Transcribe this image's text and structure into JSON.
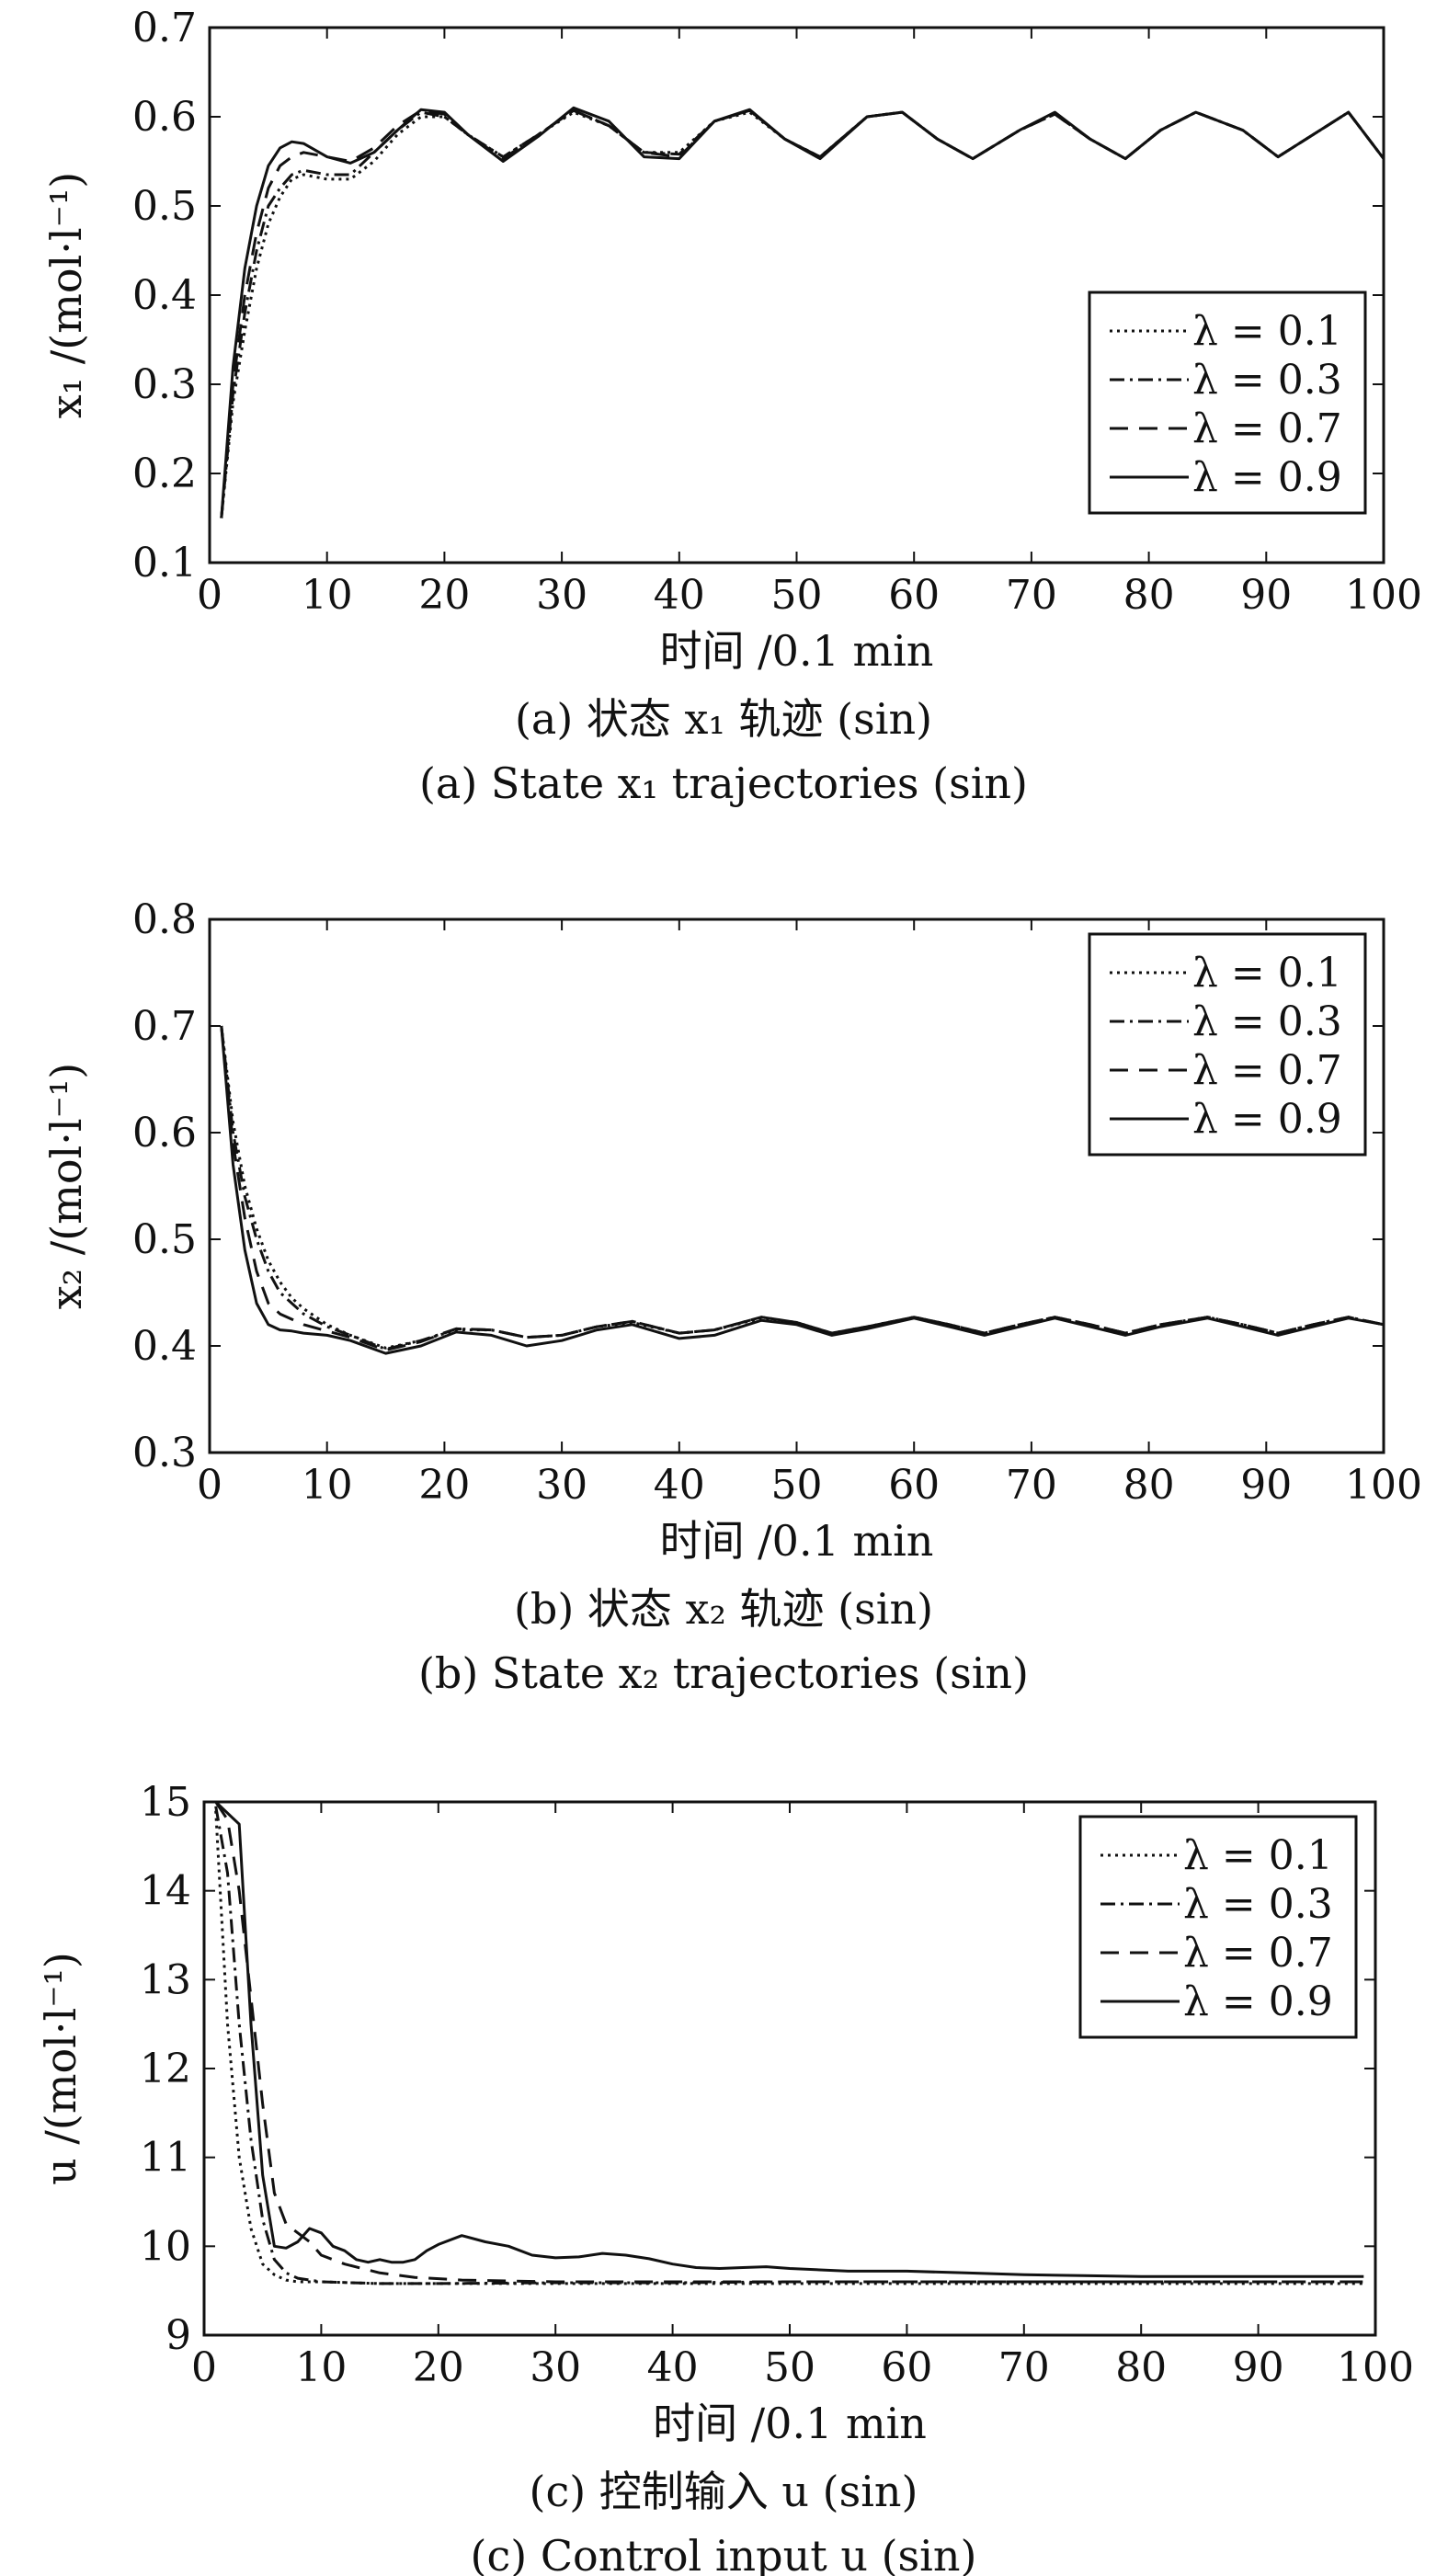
{
  "chart_data": [
    {
      "type": "line",
      "title": "(a) 状态 x₁ 轨迹 (sin)",
      "subtitle": "(a) State x₁ trajectories (sin)",
      "xlabel": "时间 /0.1 min",
      "ylabel": "x₁ /(mol·l⁻¹)",
      "xlim": [
        0,
        100
      ],
      "ylim": [
        0.1,
        0.7
      ],
      "xticks": [
        0,
        10,
        20,
        30,
        40,
        50,
        60,
        70,
        80,
        90,
        100
      ],
      "xtick_labels": [
        "0",
        "10",
        "20",
        "30",
        "40",
        "50",
        "60",
        "70",
        "80",
        "90",
        "100"
      ],
      "yticks": [
        0.1,
        0.2,
        0.3,
        0.4,
        0.5,
        0.6,
        0.7
      ],
      "ytick_labels": [
        "0.1",
        "0.2",
        "0.3",
        "0.4",
        "0.5",
        "0.6",
        "0.7"
      ],
      "grid": false,
      "legend_position": "right",
      "series": [
        {
          "name": "λ = 0.1",
          "style": "dotted",
          "x": [
            1,
            2,
            3,
            4,
            5,
            6,
            7,
            8,
            10,
            12,
            14,
            16,
            18,
            20,
            22,
            25,
            28,
            31,
            34,
            37,
            40,
            43,
            46,
            49,
            52,
            56,
            59,
            62,
            65,
            69,
            72,
            75,
            78,
            81,
            84,
            88,
            91,
            94,
            97,
            100
          ],
          "values": [
            0.15,
            0.28,
            0.36,
            0.43,
            0.48,
            0.51,
            0.53,
            0.535,
            0.53,
            0.53,
            0.55,
            0.58,
            0.6,
            0.6,
            0.58,
            0.555,
            0.58,
            0.605,
            0.59,
            0.56,
            0.56,
            0.595,
            0.605,
            0.575,
            0.555,
            0.6,
            0.605,
            0.575,
            0.553,
            0.585,
            0.603,
            0.575,
            0.553,
            0.585,
            0.605,
            0.585,
            0.555,
            0.58,
            0.605,
            0.553
          ]
        },
        {
          "name": "λ = 0.3",
          "style": "dashdot",
          "x": [
            1,
            2,
            3,
            4,
            5,
            6,
            7,
            8,
            10,
            12,
            14,
            16,
            18,
            20,
            22,
            25,
            28,
            31,
            34,
            37,
            40,
            43,
            46,
            49,
            52,
            56,
            59,
            62,
            65,
            69,
            72,
            75,
            78,
            81,
            84,
            88,
            91,
            94,
            97,
            100
          ],
          "values": [
            0.15,
            0.29,
            0.38,
            0.45,
            0.5,
            0.52,
            0.535,
            0.54,
            0.535,
            0.535,
            0.56,
            0.585,
            0.605,
            0.6,
            0.58,
            0.555,
            0.58,
            0.607,
            0.59,
            0.56,
            0.558,
            0.595,
            0.607,
            0.575,
            0.555,
            0.6,
            0.605,
            0.575,
            0.553,
            0.585,
            0.603,
            0.575,
            0.553,
            0.585,
            0.605,
            0.585,
            0.555,
            0.58,
            0.605,
            0.553
          ]
        },
        {
          "name": "λ = 0.7",
          "style": "dashed",
          "x": [
            1,
            2,
            3,
            4,
            5,
            6,
            7,
            8,
            10,
            12,
            14,
            16,
            18,
            20,
            22,
            25,
            28,
            31,
            34,
            37,
            40,
            43,
            46,
            49,
            52,
            56,
            59,
            62,
            65,
            69,
            72,
            75,
            78,
            81,
            84,
            88,
            91,
            94,
            97,
            100
          ],
          "values": [
            0.15,
            0.3,
            0.4,
            0.47,
            0.52,
            0.545,
            0.555,
            0.56,
            0.555,
            0.55,
            0.565,
            0.59,
            0.607,
            0.603,
            0.58,
            0.553,
            0.58,
            0.607,
            0.59,
            0.56,
            0.555,
            0.595,
            0.607,
            0.575,
            0.555,
            0.6,
            0.605,
            0.575,
            0.553,
            0.585,
            0.603,
            0.575,
            0.553,
            0.585,
            0.605,
            0.585,
            0.555,
            0.58,
            0.605,
            0.553
          ]
        },
        {
          "name": "λ = 0.9",
          "style": "solid",
          "x": [
            1,
            2,
            3,
            4,
            5,
            6,
            7,
            8,
            10,
            12,
            14,
            16,
            18,
            20,
            22,
            25,
            28,
            31,
            34,
            37,
            40,
            43,
            46,
            49,
            52,
            56,
            59,
            62,
            65,
            69,
            72,
            75,
            78,
            81,
            84,
            88,
            91,
            94,
            97,
            100
          ],
          "values": [
            0.15,
            0.32,
            0.43,
            0.5,
            0.545,
            0.565,
            0.572,
            0.57,
            0.555,
            0.548,
            0.56,
            0.585,
            0.608,
            0.605,
            0.58,
            0.55,
            0.578,
            0.61,
            0.595,
            0.555,
            0.553,
            0.595,
            0.608,
            0.575,
            0.553,
            0.6,
            0.605,
            0.575,
            0.553,
            0.585,
            0.605,
            0.575,
            0.553,
            0.585,
            0.605,
            0.585,
            0.555,
            0.58,
            0.605,
            0.553
          ]
        }
      ]
    },
    {
      "type": "line",
      "title": "(b) 状态 x₂ 轨迹 (sin)",
      "subtitle": "(b) State x₂ trajectories (sin)",
      "xlabel": "时间 /0.1 min",
      "ylabel": "x₂ /(mol·l⁻¹)",
      "xlim": [
        0,
        100
      ],
      "ylim": [
        0.3,
        0.8
      ],
      "xticks": [
        0,
        10,
        20,
        30,
        40,
        50,
        60,
        70,
        80,
        90,
        100
      ],
      "xtick_labels": [
        "0",
        "10",
        "20",
        "30",
        "40",
        "50",
        "60",
        "70",
        "80",
        "90",
        "100"
      ],
      "yticks": [
        0.3,
        0.4,
        0.5,
        0.6,
        0.7,
        0.8
      ],
      "ytick_labels": [
        "0.3",
        "0.4",
        "0.5",
        "0.6",
        "0.7",
        "0.8"
      ],
      "grid": false,
      "legend_position": "top-right",
      "series": [
        {
          "name": "λ = 0.1",
          "style": "dotted",
          "x": [
            1,
            2,
            3,
            4,
            5,
            6,
            7,
            8,
            10,
            12,
            15,
            18,
            21,
            24,
            27,
            30,
            33,
            36,
            40,
            43,
            47,
            50,
            53,
            56,
            60,
            63,
            66,
            69,
            72,
            75,
            78,
            81,
            85,
            88,
            91,
            94,
            97,
            100
          ],
          "values": [
            0.7,
            0.61,
            0.55,
            0.51,
            0.48,
            0.46,
            0.445,
            0.435,
            0.42,
            0.41,
            0.398,
            0.405,
            0.415,
            0.415,
            0.408,
            0.41,
            0.418,
            0.422,
            0.412,
            0.415,
            0.426,
            0.422,
            0.412,
            0.418,
            0.427,
            0.42,
            0.412,
            0.42,
            0.427,
            0.42,
            0.412,
            0.42,
            0.427,
            0.42,
            0.412,
            0.42,
            0.427,
            0.42
          ]
        },
        {
          "name": "λ = 0.3",
          "style": "dashdot",
          "x": [
            1,
            2,
            3,
            4,
            5,
            6,
            7,
            8,
            10,
            12,
            15,
            18,
            21,
            24,
            27,
            30,
            33,
            36,
            40,
            43,
            47,
            50,
            53,
            56,
            60,
            63,
            66,
            69,
            72,
            75,
            78,
            81,
            85,
            88,
            91,
            94,
            97,
            100
          ],
          "values": [
            0.7,
            0.6,
            0.54,
            0.5,
            0.47,
            0.45,
            0.44,
            0.43,
            0.418,
            0.41,
            0.397,
            0.405,
            0.416,
            0.415,
            0.408,
            0.41,
            0.418,
            0.423,
            0.412,
            0.415,
            0.427,
            0.422,
            0.412,
            0.418,
            0.427,
            0.42,
            0.412,
            0.42,
            0.427,
            0.42,
            0.412,
            0.42,
            0.427,
            0.42,
            0.412,
            0.42,
            0.427,
            0.42
          ]
        },
        {
          "name": "λ = 0.7",
          "style": "dashed",
          "x": [
            1,
            2,
            3,
            4,
            5,
            6,
            7,
            8,
            10,
            12,
            15,
            18,
            21,
            24,
            27,
            30,
            33,
            36,
            40,
            43,
            47,
            50,
            53,
            56,
            60,
            63,
            66,
            69,
            72,
            75,
            78,
            81,
            85,
            88,
            91,
            94,
            97,
            100
          ],
          "values": [
            0.7,
            0.59,
            0.52,
            0.47,
            0.44,
            0.43,
            0.425,
            0.42,
            0.414,
            0.408,
            0.396,
            0.404,
            0.416,
            0.415,
            0.408,
            0.41,
            0.418,
            0.423,
            0.412,
            0.415,
            0.427,
            0.422,
            0.412,
            0.418,
            0.427,
            0.42,
            0.412,
            0.42,
            0.427,
            0.42,
            0.412,
            0.42,
            0.427,
            0.42,
            0.412,
            0.42,
            0.427,
            0.42
          ]
        },
        {
          "name": "λ = 0.9",
          "style": "solid",
          "x": [
            1,
            2,
            3,
            4,
            5,
            6,
            7,
            8,
            10,
            12,
            15,
            18,
            21,
            24,
            27,
            30,
            33,
            36,
            40,
            43,
            47,
            50,
            53,
            56,
            60,
            63,
            66,
            69,
            72,
            75,
            78,
            81,
            85,
            88,
            91,
            94,
            97,
            100
          ],
          "values": [
            0.7,
            0.57,
            0.49,
            0.44,
            0.42,
            0.415,
            0.414,
            0.412,
            0.41,
            0.405,
            0.393,
            0.4,
            0.413,
            0.41,
            0.4,
            0.405,
            0.415,
            0.42,
            0.407,
            0.41,
            0.424,
            0.42,
            0.41,
            0.416,
            0.426,
            0.418,
            0.41,
            0.418,
            0.426,
            0.418,
            0.41,
            0.418,
            0.426,
            0.418,
            0.41,
            0.418,
            0.426,
            0.42
          ]
        }
      ]
    },
    {
      "type": "line",
      "title": "(c) 控制输入 u (sin)",
      "subtitle": "(c) Control input u (sin)",
      "xlabel": "时间 /0.1 min",
      "ylabel": "u /(mol·l⁻¹)",
      "xlim": [
        0,
        100
      ],
      "ylim": [
        9,
        15
      ],
      "xticks": [
        0,
        10,
        20,
        30,
        40,
        50,
        60,
        70,
        80,
        90,
        100
      ],
      "xtick_labels": [
        "0",
        "10",
        "20",
        "30",
        "40",
        "50",
        "60",
        "70",
        "80",
        "90",
        "100"
      ],
      "yticks": [
        9,
        10,
        11,
        12,
        13,
        14,
        15
      ],
      "ytick_labels": [
        "9",
        "10",
        "11",
        "12",
        "13",
        "14",
        "15"
      ],
      "grid": false,
      "legend_position": "top-right",
      "series": [
        {
          "name": "λ = 0.1",
          "style": "dotted",
          "x": [
            1,
            2,
            3,
            4,
            5,
            6,
            7,
            8,
            10,
            15,
            20,
            30,
            40,
            50,
            60,
            70,
            80,
            90,
            99
          ],
          "values": [
            14.9,
            12.5,
            11.0,
            10.2,
            9.8,
            9.68,
            9.62,
            9.6,
            9.6,
            9.58,
            9.58,
            9.58,
            9.58,
            9.58,
            9.58,
            9.58,
            9.58,
            9.58,
            9.58
          ]
        },
        {
          "name": "λ = 0.3",
          "style": "dashdot",
          "x": [
            1,
            2,
            3,
            4,
            5,
            6,
            7,
            8,
            10,
            15,
            20,
            30,
            40,
            50,
            60,
            70,
            80,
            90,
            99
          ],
          "values": [
            14.95,
            14.2,
            12.5,
            11.2,
            10.3,
            9.85,
            9.7,
            9.64,
            9.6,
            9.58,
            9.58,
            9.59,
            9.59,
            9.6,
            9.6,
            9.6,
            9.6,
            9.6,
            9.6
          ]
        },
        {
          "name": "λ = 0.7",
          "style": "dashed",
          "x": [
            1,
            2,
            3,
            4,
            5,
            6,
            7,
            8,
            9,
            10,
            12,
            15,
            18,
            22,
            30,
            40,
            50,
            60,
            70,
            80,
            90,
            99
          ],
          "values": [
            15.0,
            14.8,
            14.0,
            12.8,
            11.6,
            10.6,
            10.25,
            10.15,
            10.05,
            9.9,
            9.8,
            9.7,
            9.65,
            9.62,
            9.6,
            9.6,
            9.6,
            9.6,
            9.6,
            9.6,
            9.6,
            9.6
          ]
        },
        {
          "name": "λ = 0.9",
          "style": "solid",
          "x": [
            1,
            3,
            4,
            5,
            6,
            7,
            8,
            9,
            10,
            11,
            12,
            13,
            14,
            15,
            16,
            17,
            18,
            19,
            20,
            22,
            24,
            26,
            28,
            30,
            32,
            34,
            36,
            38,
            40,
            42,
            44,
            46,
            48,
            50,
            55,
            60,
            65,
            70,
            75,
            80,
            85,
            90,
            95,
            99
          ],
          "values": [
            15.0,
            14.75,
            12.5,
            10.8,
            10.0,
            9.98,
            10.05,
            10.2,
            10.15,
            10.0,
            9.95,
            9.85,
            9.82,
            9.85,
            9.82,
            9.82,
            9.85,
            9.95,
            10.02,
            10.12,
            10.05,
            10.0,
            9.9,
            9.87,
            9.88,
            9.92,
            9.9,
            9.86,
            9.8,
            9.76,
            9.75,
            9.76,
            9.77,
            9.75,
            9.72,
            9.72,
            9.7,
            9.68,
            9.67,
            9.66,
            9.66,
            9.66,
            9.66,
            9.66
          ]
        }
      ]
    }
  ],
  "legend_labels": [
    "λ = 0.1",
    "λ = 0.3",
    "λ = 0.7",
    "λ = 0.9"
  ]
}
